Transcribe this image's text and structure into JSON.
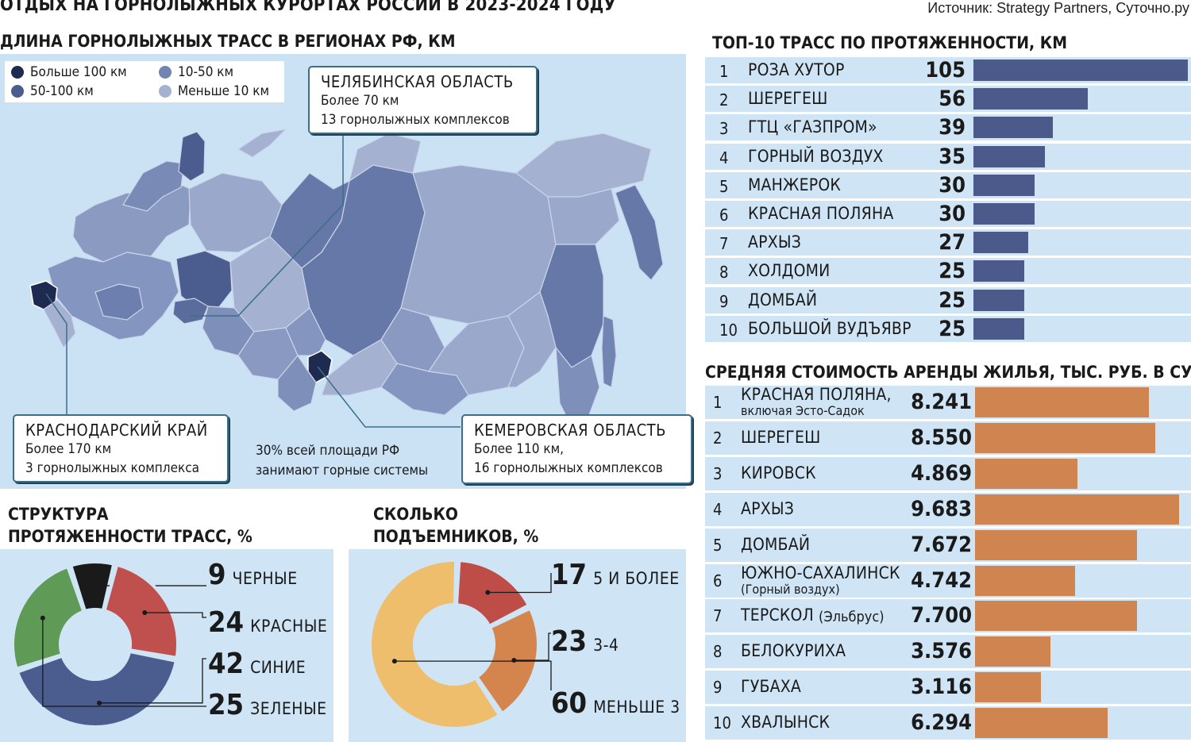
{
  "header": {
    "title": "ОТДЫХ НА ГОРНОЛЫЖНЫХ КУРОРТАХ РОССИИ В 2023-2024 ГОДУ",
    "source": "Источник: Strategy Partners, Суточно.ру"
  },
  "map": {
    "title": "ДЛИНА ГОРНОЛЫЖНЫХ ТРАСС В РЕГИОНАХ РФ, КМ",
    "legend": [
      {
        "label": "Больше 100 км",
        "color": "#1e2a4f"
      },
      {
        "label": "50-100 км",
        "color": "#4b5d8e"
      },
      {
        "label": "10-50 км",
        "color": "#7284b1"
      },
      {
        "label": "Меньше 10 км",
        "color": "#a5b1d0"
      }
    ],
    "callouts": {
      "chelyabinsk": {
        "title": "ЧЕЛЯБИНСКАЯ ОБЛАСТЬ",
        "line1": "Более 70 км",
        "line2": "13 горнолыжных комплексов"
      },
      "krasnodar": {
        "title": "КРАСНОДАРСКИЙ КРАЙ",
        "line1": "Более 170 км",
        "line2": "3 горнолыжных комплекса"
      },
      "kemerovo": {
        "title": "КЕМЕРОВСКАЯ ОБЛАСТЬ",
        "line1": "Более 110 км,",
        "line2": "16 горнолыжных комплексов"
      }
    },
    "note_line1": "30% всей площади РФ",
    "note_line2": "занимают горные системы"
  },
  "colors": {
    "bar_blue": "#4b5a8a",
    "bar_orange": "#d0844f",
    "black": "#1a1a1a",
    "red": "#c0504d",
    "blue": "#4b5d8e",
    "green": "#5f9a56",
    "lift_red": "#bf4d47",
    "lift_orange": "#d4844d",
    "lift_yellow": "#efbe6c"
  },
  "chart_data": [
    {
      "type": "bar",
      "title": "ТОП-10 ТРАСС ПО ПРОТЯЖЕННОСТИ, КМ",
      "ranks": [
        "1",
        "2",
        "3",
        "4",
        "5",
        "6",
        "7",
        "8",
        "9",
        "10"
      ],
      "categories": [
        "РОЗА ХУТОР",
        "ШЕРЕГЕШ",
        "ГТЦ «ГАЗПРОМ»",
        "ГОРНЫЙ ВОЗДУХ",
        "МАНЖЕРОК",
        "КРАСНАЯ ПОЛЯНА",
        "АРХЫЗ",
        "ХОЛДОМИ",
        "ДОМБАЙ",
        "БОЛЬШОЙ ВУДЪЯВР"
      ],
      "values": [
        105,
        56,
        39,
        35,
        30,
        30,
        27,
        25,
        25,
        25
      ],
      "labels": [
        "105",
        "56",
        "39",
        "35",
        "30",
        "30",
        "27",
        "25",
        "25",
        "25"
      ],
      "xlim": [
        0,
        105
      ]
    },
    {
      "type": "bar",
      "title": "СРЕДНЯЯ СТОИМОСТЬ АРЕНДЫ ЖИЛЬЯ, ТЫС. РУБ. В СУТКИ",
      "ranks": [
        "1",
        "2",
        "3",
        "4",
        "5",
        "6",
        "7",
        "8",
        "9",
        "10"
      ],
      "categories": [
        "КРАСНАЯ ПОЛЯНА,",
        "ШЕРЕГЕШ",
        "КИРОВСК",
        "АРХЫЗ",
        "ДОМБАЙ",
        "ЮЖНО-САХАЛИНСК",
        "ТЕРСКОЛ",
        "БЕЛОКУРИХА",
        "ГУБАХА",
        "ХВАЛЫНСК"
      ],
      "subtitles": [
        "включая Эсто-Садок",
        "",
        "",
        "",
        "",
        "(Горный воздух)",
        "(Эльбрус)",
        "",
        "",
        ""
      ],
      "values": [
        8.241,
        8.55,
        4.869,
        9.683,
        7.672,
        4.742,
        7.7,
        3.576,
        3.116,
        6.294
      ],
      "labels": [
        "8.241",
        "8.550",
        "4.869",
        "9.683",
        "7.672",
        "4.742",
        "7.700",
        "3.576",
        "3.116",
        "6.294"
      ],
      "xlim": [
        0,
        10.1
      ]
    },
    {
      "type": "pie",
      "title_line1": "СТРУКТУРА",
      "title_line2": "ПРОТЯЖЕННОСТИ ТРАСС, %",
      "categories": [
        "ЧЕРНЫЕ",
        "КРАСНЫЕ",
        "СИНИЕ",
        "ЗЕЛЕНЫЕ"
      ],
      "values": [
        9,
        24,
        42,
        25
      ],
      "labels": [
        "9",
        "24",
        "42",
        "25"
      ]
    },
    {
      "type": "pie",
      "title_line1": "СКОЛЬКО",
      "title_line2": "ПОДЪЕМНИКОВ, %",
      "categories": [
        "5 И БОЛЕЕ",
        "3-4",
        "МЕНЬШЕ 3"
      ],
      "values": [
        17,
        23,
        60
      ],
      "labels": [
        "17",
        "23",
        "60"
      ]
    }
  ]
}
